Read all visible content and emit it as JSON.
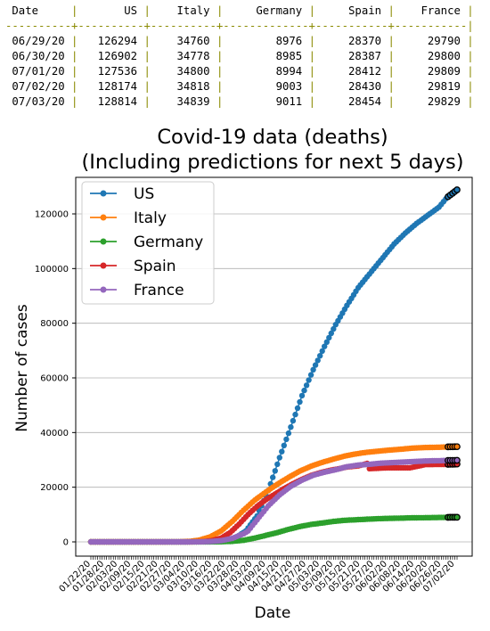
{
  "prediction_table": {
    "headers": [
      "Date",
      "US",
      "Italy",
      "Germany",
      "Spain",
      "France"
    ],
    "rows": [
      [
        "06/29/20",
        "126294",
        "34760",
        "8976",
        "28370",
        "29790"
      ],
      [
        "06/30/20",
        "126902",
        "34778",
        "8985",
        "28387",
        "29800"
      ],
      [
        "07/01/20",
        "127536",
        "34800",
        "8994",
        "28412",
        "29809"
      ],
      [
        "07/02/20",
        "128174",
        "34818",
        "9003",
        "28430",
        "29819"
      ],
      [
        "07/03/20",
        "128814",
        "34839",
        "9011",
        "28454",
        "29829"
      ]
    ]
  },
  "chart_data": {
    "type": "line",
    "title_line1": "Covid-19 data (deaths)",
    "title_line2": "(Including predictions for next 5 days)",
    "xlabel": "Date",
    "ylabel": "Number of cases",
    "ylim": [
      0,
      130000
    ],
    "yticks": [
      0,
      20000,
      40000,
      60000,
      80000,
      100000,
      120000
    ],
    "grid": "horizontal",
    "legend_position": "top-left",
    "x_start": "01/22/20",
    "x_end": "07/03/20",
    "predicted_dates": [
      "06/29/20",
      "06/30/20",
      "07/01/20",
      "07/02/20",
      "07/03/20"
    ],
    "xtick_labels": [
      "01/22/20",
      "01/28/20",
      "02/03/20",
      "02/09/20",
      "02/15/20",
      "02/21/20",
      "02/27/20",
      "03/04/20",
      "03/10/20",
      "03/16/20",
      "03/22/20",
      "03/28/20",
      "04/03/20",
      "04/09/20",
      "04/15/20",
      "04/21/20",
      "04/27/20",
      "05/03/20",
      "05/09/20",
      "05/15/20",
      "05/21/20",
      "05/27/20",
      "06/02/20",
      "06/08/20",
      "06/14/20",
      "06/20/20",
      "06/26/20",
      "07/02/20"
    ],
    "series": [
      {
        "name": "US",
        "color": "#1f77b4",
        "points": [
          [
            "01/22/20",
            0
          ],
          [
            "02/29/20",
            1
          ],
          [
            "03/10/20",
            30
          ],
          [
            "03/17/20",
            110
          ],
          [
            "03/22/20",
            470
          ],
          [
            "03/26/20",
            1300
          ],
          [
            "03/31/20",
            4000
          ],
          [
            "04/05/20",
            9500
          ],
          [
            "04/10/20",
            18800
          ],
          [
            "04/15/20",
            30800
          ],
          [
            "04/20/20",
            42000
          ],
          [
            "04/25/20",
            53500
          ],
          [
            "04/30/20",
            63000
          ],
          [
            "05/05/20",
            71500
          ],
          [
            "05/10/20",
            79500
          ],
          [
            "05/15/20",
            86500
          ],
          [
            "05/20/20",
            93000
          ],
          [
            "05/25/20",
            98000
          ],
          [
            "05/31/20",
            104000
          ],
          [
            "06/05/20",
            109000
          ],
          [
            "06/10/20",
            113000
          ],
          [
            "06/15/20",
            116500
          ],
          [
            "06/20/20",
            119500
          ],
          [
            "06/25/20",
            122500
          ],
          [
            "06/28/20",
            125500
          ]
        ]
      },
      {
        "name": "Italy",
        "color": "#ff7f0e",
        "points": [
          [
            "01/22/20",
            0
          ],
          [
            "02/21/20",
            1
          ],
          [
            "03/01/20",
            34
          ],
          [
            "03/06/20",
            200
          ],
          [
            "03/10/20",
            630
          ],
          [
            "03/15/20",
            1800
          ],
          [
            "03/20/20",
            4000
          ],
          [
            "03/25/20",
            7500
          ],
          [
            "03/30/20",
            11600
          ],
          [
            "04/04/20",
            15300
          ],
          [
            "04/09/20",
            18300
          ],
          [
            "04/14/20",
            21100
          ],
          [
            "04/19/20",
            23600
          ],
          [
            "04/24/20",
            25900
          ],
          [
            "04/29/20",
            27700
          ],
          [
            "05/04/20",
            29100
          ],
          [
            "05/09/20",
            30300
          ],
          [
            "05/14/20",
            31400
          ],
          [
            "05/19/20",
            32200
          ],
          [
            "05/24/20",
            32800
          ],
          [
            "05/29/20",
            33200
          ],
          [
            "06/03/20",
            33600
          ],
          [
            "06/08/20",
            33900
          ],
          [
            "06/13/20",
            34300
          ],
          [
            "06/18/20",
            34500
          ],
          [
            "06/23/20",
            34600
          ],
          [
            "06/28/20",
            34700
          ]
        ]
      },
      {
        "name": "Germany",
        "color": "#2ca02c",
        "points": [
          [
            "01/22/20",
            0
          ],
          [
            "03/09/20",
            2
          ],
          [
            "03/15/20",
            12
          ],
          [
            "03/20/20",
            70
          ],
          [
            "03/25/20",
            200
          ],
          [
            "03/30/20",
            600
          ],
          [
            "04/04/20",
            1400
          ],
          [
            "04/09/20",
            2400
          ],
          [
            "04/14/20",
            3400
          ],
          [
            "04/19/20",
            4600
          ],
          [
            "04/24/20",
            5600
          ],
          [
            "04/29/20",
            6400
          ],
          [
            "05/04/20",
            6900
          ],
          [
            "05/09/20",
            7500
          ],
          [
            "05/14/20",
            7900
          ],
          [
            "05/19/20",
            8100
          ],
          [
            "05/24/20",
            8300
          ],
          [
            "05/29/20",
            8500
          ],
          [
            "06/03/20",
            8600
          ],
          [
            "06/08/20",
            8700
          ],
          [
            "06/13/20",
            8800
          ],
          [
            "06/18/20",
            8850
          ],
          [
            "06/23/20",
            8900
          ],
          [
            "06/28/20",
            8960
          ]
        ]
      },
      {
        "name": "Spain",
        "color": "#d62728",
        "points": [
          [
            "01/22/20",
            0
          ],
          [
            "03/03/20",
            1
          ],
          [
            "03/08/20",
            17
          ],
          [
            "03/12/20",
            85
          ],
          [
            "03/16/20",
            500
          ],
          [
            "03/20/20",
            1400
          ],
          [
            "03/24/20",
            3400
          ],
          [
            "03/28/20",
            6500
          ],
          [
            "04/01/20",
            10000
          ],
          [
            "04/05/20",
            13000
          ],
          [
            "04/09/20",
            15500
          ],
          [
            "04/13/20",
            17500
          ],
          [
            "04/17/20",
            19500
          ],
          [
            "04/21/20",
            21300
          ],
          [
            "04/25/20",
            22900
          ],
          [
            "04/29/20",
            24300
          ],
          [
            "05/03/20",
            25300
          ],
          [
            "05/07/20",
            26100
          ],
          [
            "05/11/20",
            26700
          ],
          [
            "05/15/20",
            27400
          ],
          [
            "05/20/20",
            27800
          ],
          [
            "05/24/20",
            28700
          ],
          [
            "05/25/20",
            26800
          ],
          [
            "06/02/20",
            27100
          ],
          [
            "06/12/20",
            27100
          ],
          [
            "06/19/20",
            28300
          ],
          [
            "06/28/20",
            28350
          ]
        ]
      },
      {
        "name": "France",
        "color": "#9467bd",
        "points": [
          [
            "01/22/20",
            0
          ],
          [
            "02/15/20",
            1
          ],
          [
            "03/05/20",
            6
          ],
          [
            "03/10/20",
            35
          ],
          [
            "03/15/20",
            120
          ],
          [
            "03/20/20",
            450
          ],
          [
            "03/25/20",
            1300
          ],
          [
            "03/30/20",
            3000
          ],
          [
            "04/01/20",
            4000
          ],
          [
            "04/05/20",
            8100
          ],
          [
            "04/10/20",
            13200
          ],
          [
            "04/15/20",
            17200
          ],
          [
            "04/20/20",
            20300
          ],
          [
            "04/25/20",
            22600
          ],
          [
            "04/30/20",
            24400
          ],
          [
            "05/05/20",
            25500
          ],
          [
            "05/10/20",
            26400
          ],
          [
            "05/15/20",
            27500
          ],
          [
            "05/20/20",
            28100
          ],
          [
            "05/25/20",
            28400
          ],
          [
            "05/30/20",
            28800
          ],
          [
            "06/04/20",
            29000
          ],
          [
            "06/09/20",
            29200
          ],
          [
            "06/14/20",
            29400
          ],
          [
            "06/19/20",
            29600
          ],
          [
            "06/24/20",
            29700
          ],
          [
            "06/28/20",
            29780
          ]
        ]
      }
    ]
  }
}
